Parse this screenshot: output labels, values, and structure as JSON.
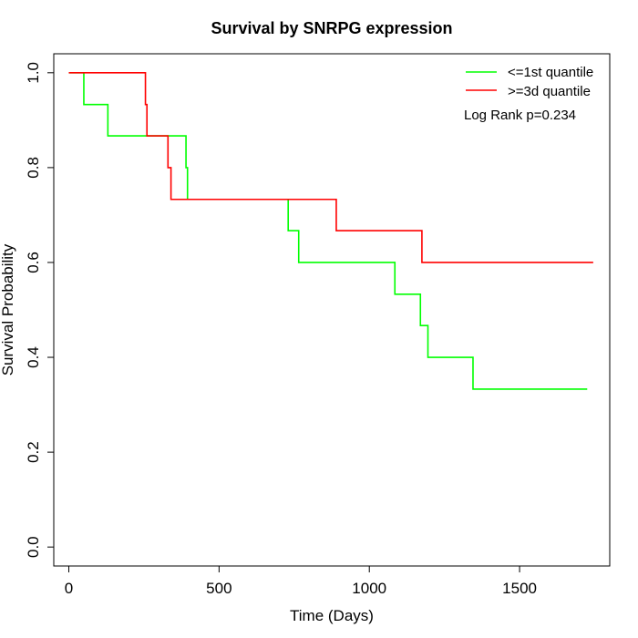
{
  "chart_data": {
    "type": "line",
    "step": true,
    "title": "Survival by SNRPG expression",
    "xlabel": "Time (Days)",
    "ylabel": "Survival Probability",
    "xlim": [
      -50,
      1800
    ],
    "ylim": [
      -0.04,
      1.04
    ],
    "xticks": [
      0,
      500,
      1000,
      1500
    ],
    "yticks": [
      0.0,
      0.2,
      0.4,
      0.6,
      0.8,
      1.0
    ],
    "xtick_labels": [
      "0",
      "500",
      "1000",
      "1500"
    ],
    "ytick_labels": [
      "0.0",
      "0.2",
      "0.4",
      "0.6",
      "0.8",
      "1.0"
    ],
    "grid": false,
    "legend_position": "top-right",
    "annotation": "Log Rank p=0.234",
    "series": [
      {
        "name": "<=1st quantile",
        "color": "#00ff00",
        "x": [
          0,
          50,
          130,
          390,
          395,
          730,
          765,
          1085,
          1170,
          1195,
          1345,
          1725
        ],
        "y": [
          1.0,
          0.933,
          0.867,
          0.8,
          0.733,
          0.667,
          0.6,
          0.533,
          0.467,
          0.4,
          0.333,
          0.333
        ]
      },
      {
        "name": ">=3d quantile",
        "color": "#ff0000",
        "x": [
          0,
          255,
          260,
          330,
          340,
          890,
          1175,
          1745
        ],
        "y": [
          1.0,
          0.933,
          0.867,
          0.8,
          0.733,
          0.667,
          0.6,
          0.6
        ]
      }
    ]
  }
}
